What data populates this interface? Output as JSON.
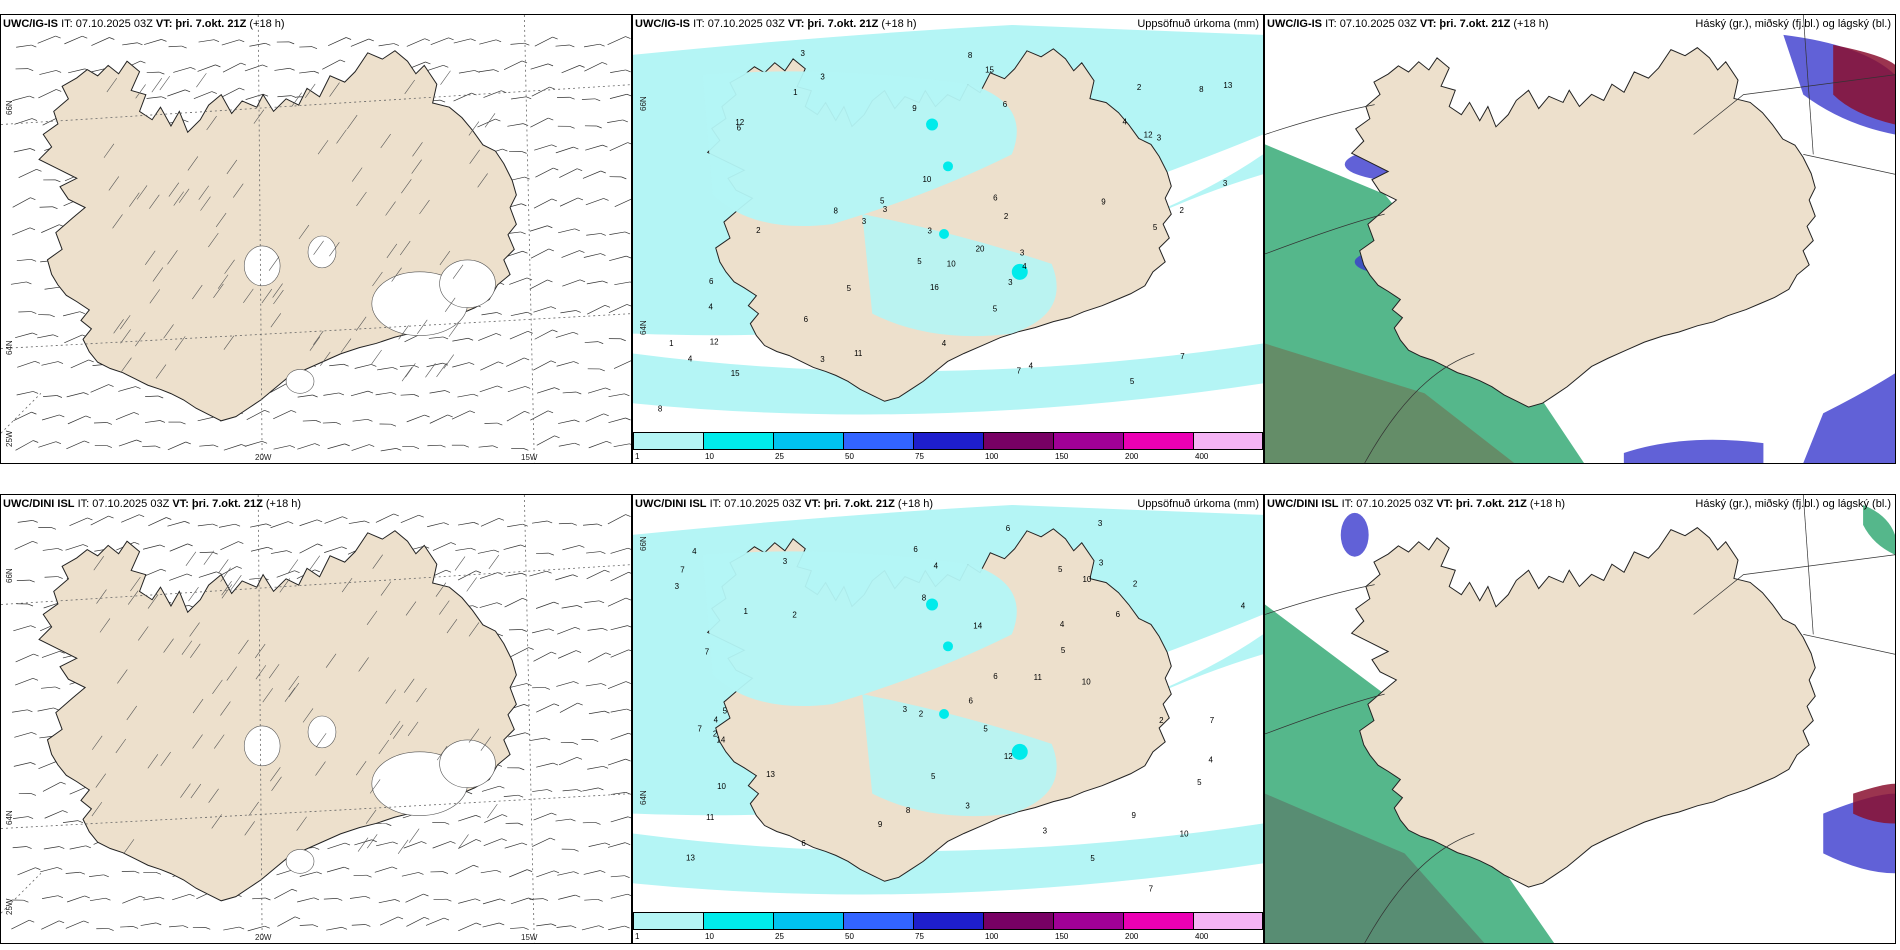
{
  "panels": [
    {
      "model": "UWC/IG-IS",
      "init": "IT: 07.10.2025 03Z",
      "valid": "VT: þri. 7.okt. 21Z",
      "lead": "(+18 h)"
    },
    {
      "model": "UWC/IG-IS",
      "init": "IT: 07.10.2025 03Z",
      "valid": "VT: þri. 7.okt. 21Z",
      "lead": "(+18 h)",
      "right_title": "Uppsöfnuð úrkoma (mm)"
    },
    {
      "model": "UWC/IG-IS",
      "init": "IT: 07.10.2025 03Z",
      "valid": "VT: þri. 7.okt. 21Z",
      "lead": "(+18 h)",
      "right_title": "Háský (gr.), miðský (fj.bl.) og lágský (bl.)"
    },
    {
      "model": "UWC/DINI ISL",
      "init": "IT: 07.10.2025 03Z",
      "valid": "VT: þri. 7.okt. 21Z",
      "lead": "(+18 h)"
    },
    {
      "model": "UWC/DINI ISL",
      "init": "IT: 07.10.2025 03Z",
      "valid": "VT: þri. 7.okt. 21Z",
      "lead": "(+18 h)",
      "right_title": "Uppsöfnuð úrkoma (mm)"
    },
    {
      "model": "UWC/DINI ISL",
      "init": "IT: 07.10.2025 03Z",
      "valid": "VT: þri. 7.okt. 21Z",
      "lead": "(+18 h)",
      "right_title": "Háský (gr.), miðský (fj.bl.) og lágský (bl.)"
    }
  ],
  "axis_labels": {
    "lat66": "66N",
    "lat64": "64N",
    "lon25": "25W",
    "lon20": "20W",
    "lon15": "15W"
  },
  "colorbar": {
    "ticks": [
      "1",
      "10",
      "25",
      "50",
      "75",
      "100",
      "150",
      "200",
      "400"
    ],
    "colors": [
      "#b4f5f5",
      "#00ebeb",
      "#00c3f0",
      "#3264ff",
      "#1e1ecd",
      "#780064",
      "#a00096",
      "#eb00b4",
      "#f5b4f5"
    ]
  },
  "precip_values_top": [
    "1",
    "2",
    "3",
    "5",
    "4",
    "6",
    "2",
    "3",
    "5",
    "8",
    "4",
    "3",
    "12",
    "13",
    "11",
    "15",
    "15",
    "12",
    "8",
    "7",
    "6",
    "5",
    "9",
    "10",
    "5",
    "7",
    "6",
    "4",
    "3",
    "2",
    "20",
    "16",
    "4",
    "3",
    "5",
    "6",
    "10",
    "8",
    "3",
    "4",
    "12",
    "9",
    "3",
    "2",
    "5",
    "3",
    "6",
    "1",
    "3",
    "4",
    "8",
    "3"
  ],
  "precip_values_bottom": [
    "3",
    "2",
    "4",
    "5",
    "6",
    "10",
    "13",
    "9",
    "11",
    "13",
    "14",
    "10",
    "8",
    "7",
    "5",
    "4",
    "3",
    "2",
    "14",
    "10",
    "6",
    "7",
    "5",
    "3",
    "4",
    "12",
    "10",
    "9",
    "6",
    "5",
    "3",
    "2",
    "11",
    "7",
    "6",
    "5",
    "4",
    "3",
    "2",
    "1",
    "7",
    "6",
    "5",
    "4",
    "3",
    "2",
    "3",
    "4",
    "5",
    "6",
    "7",
    "8"
  ],
  "colors": {
    "land": "#ede0cc",
    "precip_light": "#b4f5f5",
    "precip_mid": "#00ebeb",
    "high_cloud": "#2aa56e",
    "mid_cloud": "#3a3acd",
    "low_cloud": "#8a1030"
  }
}
